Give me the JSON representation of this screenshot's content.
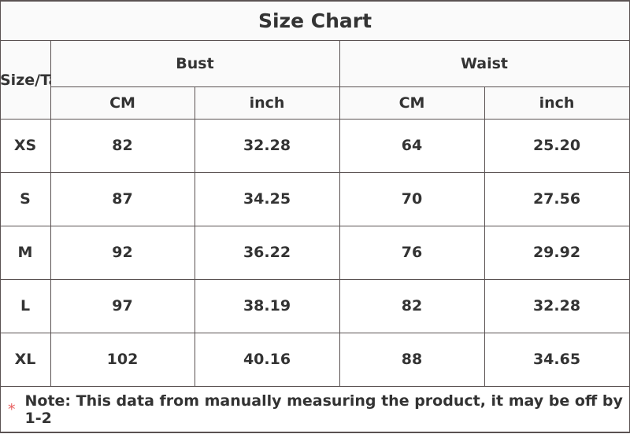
{
  "title": "Size Chart",
  "headers": {
    "size": "Size/Tag",
    "bust": "Bust",
    "waist": "Waist",
    "cm": "CM",
    "inch": "inch"
  },
  "rows": [
    {
      "size": "XS",
      "bust_cm": "82",
      "bust_in": "32.28",
      "waist_cm": "64",
      "waist_in": "25.20"
    },
    {
      "size": "S",
      "bust_cm": "87",
      "bust_in": "34.25",
      "waist_cm": "70",
      "waist_in": "27.56"
    },
    {
      "size": "M",
      "bust_cm": "92",
      "bust_in": "36.22",
      "waist_cm": "76",
      "waist_in": "29.92"
    },
    {
      "size": "L",
      "bust_cm": "97",
      "bust_in": "38.19",
      "waist_cm": "82",
      "waist_in": "32.28"
    },
    {
      "size": "XL",
      "bust_cm": "102",
      "bust_in": "40.16",
      "waist_cm": "88",
      "waist_in": "34.65"
    }
  ],
  "note": {
    "marker": "*",
    "text": "Note: This data from manually measuring the product, it may be off by 1-2"
  },
  "colors": {
    "border": "#5a5252",
    "marker": "#e86060",
    "text": "#333333"
  }
}
